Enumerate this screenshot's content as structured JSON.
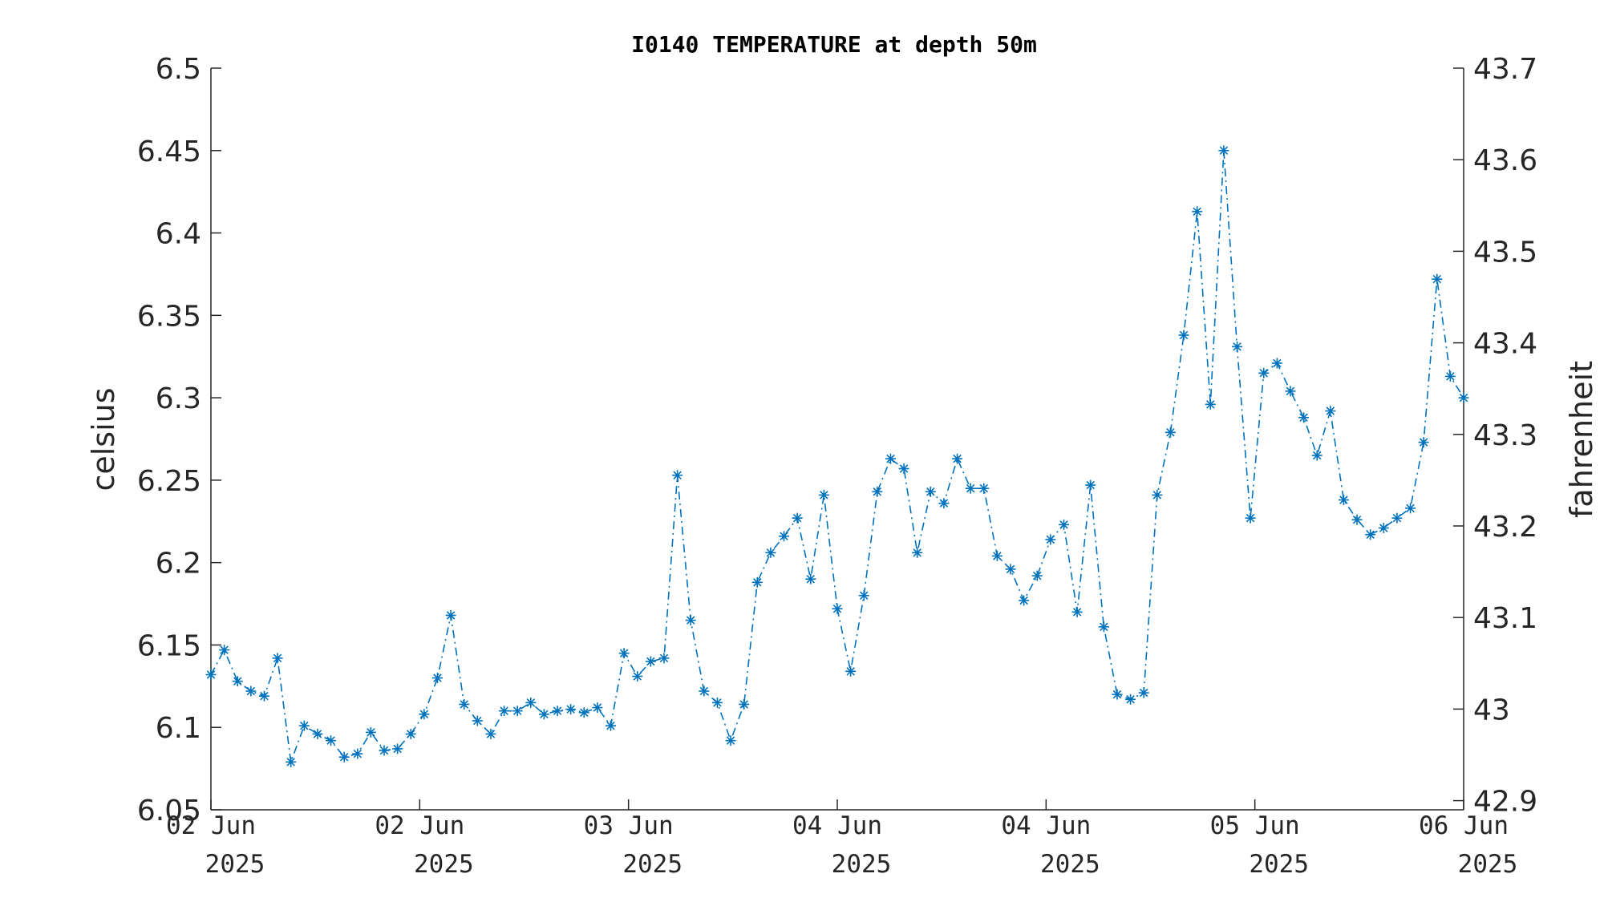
{
  "chart_data": {
    "type": "line",
    "title": "I0140 TEMPERATURE at depth 50m",
    "ylabel_left": "celsius",
    "ylabel_right": "fahrenheit",
    "ylim_left": [
      6.05,
      6.5
    ],
    "ylim_right": [
      42.89,
      43.7
    ],
    "yticks_left": [
      "6.05",
      "6.1",
      "6.15",
      "6.2",
      "6.25",
      "6.3",
      "6.35",
      "6.4",
      "6.45",
      "6.5"
    ],
    "yticks_right": [
      "42.9",
      "43",
      "43.1",
      "43.2",
      "43.3",
      "43.4",
      "43.5",
      "43.6",
      "43.7"
    ],
    "xticks": [
      {
        "line1": "02 Jun",
        "line2": "2025"
      },
      {
        "line1": "02 Jun",
        "line2": "2025"
      },
      {
        "line1": "03 Jun",
        "line2": "2025"
      },
      {
        "line1": "04 Jun",
        "line2": "2025"
      },
      {
        "line1": "04 Jun",
        "line2": "2025"
      },
      {
        "line1": "05 Jun",
        "line2": "2025"
      },
      {
        "line1": "06 Jun",
        "line2": "2025"
      }
    ],
    "grid": false,
    "series": [
      {
        "color": "#0072BD",
        "marker": "asterisk",
        "linestyle": "dash-dot",
        "values": [
          6.132,
          6.147,
          6.128,
          6.122,
          6.119,
          6.142,
          6.079,
          6.101,
          6.096,
          6.092,
          6.082,
          6.084,
          6.097,
          6.086,
          6.087,
          6.096,
          6.108,
          6.13,
          6.168,
          6.114,
          6.104,
          6.096,
          6.11,
          6.11,
          6.115,
          6.108,
          6.11,
          6.111,
          6.109,
          6.112,
          6.101,
          6.145,
          6.131,
          6.14,
          6.142,
          6.253,
          6.165,
          6.122,
          6.115,
          6.092,
          6.114,
          6.188,
          6.206,
          6.216,
          6.227,
          6.19,
          6.241,
          6.172,
          6.134,
          6.18,
          6.243,
          6.263,
          6.257,
          6.206,
          6.243,
          6.236,
          6.263,
          6.245,
          6.245,
          6.204,
          6.196,
          6.177,
          6.192,
          6.214,
          6.223,
          6.17,
          6.247,
          6.161,
          6.12,
          6.117,
          6.121,
          6.241,
          6.279,
          6.338,
          6.413,
          6.296,
          6.45,
          6.331,
          6.227,
          6.315,
          6.321,
          6.304,
          6.288,
          6.265,
          6.292,
          6.238,
          6.226,
          6.217,
          6.221,
          6.227,
          6.233,
          6.273,
          6.372,
          6.313,
          6.3
        ]
      }
    ]
  }
}
